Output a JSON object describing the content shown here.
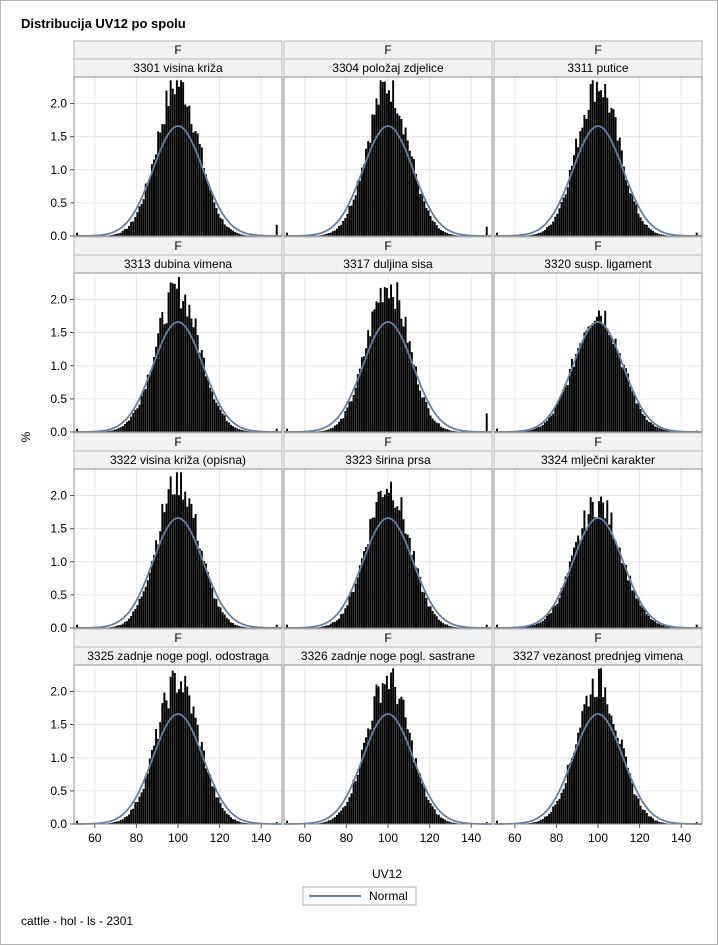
{
  "chart_data": {
    "type": "bar",
    "title": "Distribucija UV12 po spolu",
    "xlabel": "UV12",
    "ylabel": "%",
    "xlim": [
      50,
      150
    ],
    "ylim": [
      0,
      2.3
    ],
    "xticks": [
      60,
      80,
      100,
      120,
      140
    ],
    "yticks": [
      "0.0",
      "0.5",
      "1.0",
      "1.5",
      "2.0"
    ],
    "grid": true,
    "legend": {
      "position": "bottom",
      "entries": [
        {
          "name": "Normal",
          "color": "#667fa2"
        }
      ]
    },
    "bar_color": "#000000",
    "normal_curve": {
      "mean": 100,
      "sd": 12,
      "peak": 1.66
    },
    "row_header": "F",
    "panels": [
      {
        "sex": "F",
        "label": "3301 visina križa",
        "peak": 2.31,
        "shape": 0.9,
        "tail_right_spike": 0.17
      },
      {
        "sex": "F",
        "label": "3304 položaj zdjelice",
        "peak": 2.28,
        "shape": 0.9,
        "tail_right_spike": 0.14
      },
      {
        "sex": "F",
        "label": "3311 putice",
        "peak": 2.31,
        "shape": 0.9,
        "tail_right_spike": 0.05
      },
      {
        "sex": "F",
        "label": "3313 dubina vimena",
        "peak": 2.13,
        "shape": 0.95,
        "tail_right_spike": 0.05
      },
      {
        "sex": "F",
        "label": "3317 duljina sisa",
        "peak": 2.24,
        "shape": 0.9,
        "tail_right_spike": 0.28
      },
      {
        "sex": "F",
        "label": "3320 susp. ligament",
        "peak": 1.84,
        "shape": 1.0,
        "tail_right_spike": 0.02
      },
      {
        "sex": "F",
        "label": "3322 visina križa (opisna)",
        "peak": 2.23,
        "shape": 0.9,
        "tail_right_spike": 0.05
      },
      {
        "sex": "F",
        "label": "3323 širina prsa",
        "peak": 2.17,
        "shape": 0.92,
        "tail_right_spike": 0.05
      },
      {
        "sex": "F",
        "label": "3324 mlječni karakter",
        "peak": 1.88,
        "shape": 1.0,
        "tail_right_spike": 0.05
      },
      {
        "sex": "F",
        "label": "3325 zadnje noge pogl. odostraga",
        "peak": 2.17,
        "shape": 0.92,
        "tail_right_spike": 0.03
      },
      {
        "sex": "F",
        "label": "3326 zadnje noge pogl. sastrane",
        "peak": 2.2,
        "shape": 0.92,
        "tail_right_spike": 0.03
      },
      {
        "sex": "F",
        "label": "3327 vezanost prednjeg vimena",
        "peak": 2.15,
        "shape": 0.92,
        "tail_right_spike": 0.03
      }
    ]
  },
  "footnote": "cattle - hol - ls - 2301"
}
